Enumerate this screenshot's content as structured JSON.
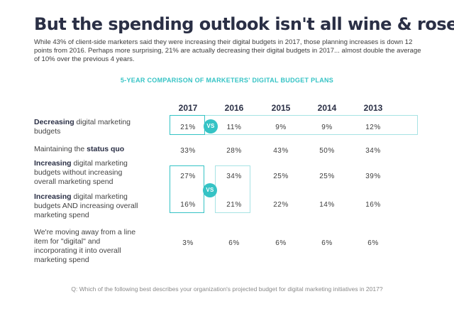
{
  "headline": "But the spending outlook isn't all wine & roses",
  "intro": "While 43% of client-side marketers said they were increasing their digital budgets in 2017, those planning increases is down 12 points from 2016. Perhaps more surprising, 21% are actually decreasing their digital budgets in 2017... almost double the average of 10% over the previous 4 years.",
  "vs_label": "VS",
  "footnote": "Q: Which of the following best describes your organization's projected budget for digital marketing initiatives in 2017?",
  "colors": {
    "accent": "#35c3c5",
    "accent_light": "#a7e3e4",
    "heading": "#2a2f45"
  },
  "chart_data": {
    "type": "table",
    "title": "5-YEAR COMPARISON OF MARKETERS' DIGITAL BUDGET PLANS",
    "columns": [
      "2017",
      "2016",
      "2015",
      "2014",
      "2013"
    ],
    "rows": [
      {
        "label_bold": "Decreasing",
        "label_rest": " digital marketing budgets",
        "label_bold_first": true,
        "values": [
          "21%",
          "11%",
          "9%",
          "9%",
          "12%"
        ]
      },
      {
        "label_bold": "status quo",
        "label_rest": "Maintaining the ",
        "label_bold_first": false,
        "values": [
          "33%",
          "28%",
          "43%",
          "50%",
          "34%"
        ]
      },
      {
        "label_bold": "Increasing",
        "label_rest": " digital marketing budgets without increasing overall marketing spend",
        "label_bold_first": true,
        "values": [
          "27%",
          "34%",
          "25%",
          "25%",
          "39%"
        ]
      },
      {
        "label_bold": "Increasing",
        "label_rest": " digital marketing budgets AND increasing overall marketing spend",
        "label_bold_first": true,
        "values": [
          "16%",
          "21%",
          "22%",
          "14%",
          "16%"
        ]
      },
      {
        "label_bold": "",
        "label_rest": "We're moving away from a line item for \"digital\" and incorporating it into overall marketing spend",
        "label_bold_first": false,
        "values": [
          "3%",
          "6%",
          "6%",
          "6%",
          "6%"
        ]
      }
    ]
  }
}
